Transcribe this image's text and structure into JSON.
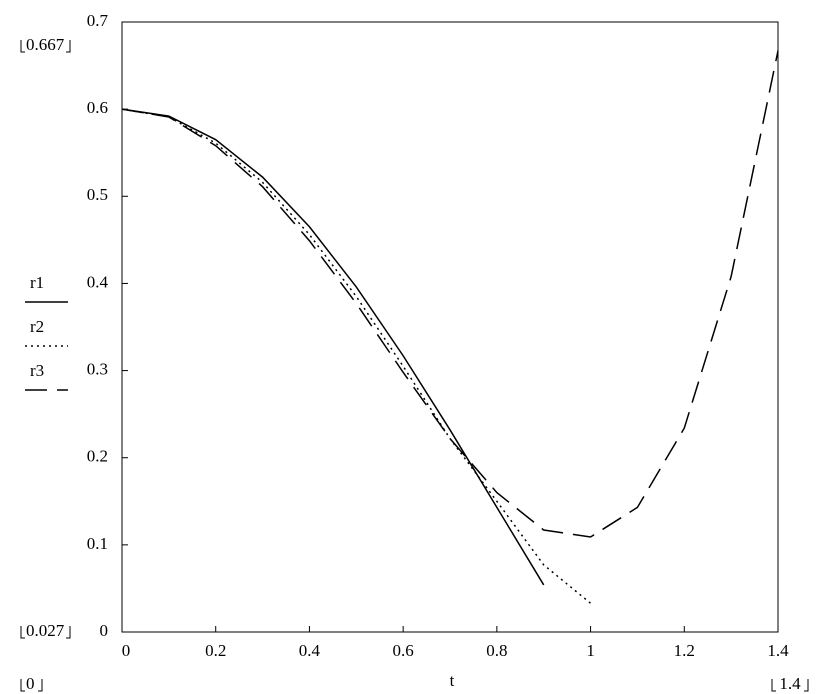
{
  "chart_data": {
    "type": "line",
    "x_label": "t",
    "x": [
      0,
      0.1,
      0.2,
      0.3,
      0.4,
      0.5,
      0.6,
      0.7,
      0.8,
      0.9,
      1,
      1.1,
      1.2,
      1.3,
      1.4
    ],
    "series": [
      {
        "name": "r1",
        "color": "#000000",
        "dash": "solid",
        "values": [
          0.6,
          0.592,
          0.565,
          0.522,
          0.465,
          0.396,
          0.317,
          0.232,
          0.143,
          0.054,
          null,
          null,
          null,
          null,
          null
        ]
      },
      {
        "name": "r2",
        "color": "#000000",
        "dash": "dotted",
        "values": [
          0.6,
          0.591,
          0.561,
          0.516,
          0.456,
          0.385,
          0.305,
          0.222,
          0.15,
          0.077,
          0.033,
          null,
          null,
          null,
          null
        ]
      },
      {
        "name": "r3",
        "color": "#000000",
        "dash": "dashed",
        "values": [
          0.6,
          0.591,
          0.558,
          0.511,
          0.449,
          0.377,
          0.298,
          0.222,
          0.16,
          0.117,
          0.109,
          0.143,
          0.234,
          0.408,
          0.667
        ]
      }
    ],
    "xlim": [
      0,
      1.4
    ],
    "xticks": [
      0,
      0.2,
      0.4,
      0.6,
      0.8,
      1,
      1.2,
      1.4
    ],
    "ylim": [
      0,
      0.7
    ],
    "yticks": [
      0,
      0.1,
      0.2,
      0.3,
      0.4,
      0.5,
      0.6,
      0.7
    ],
    "limit_labels": {
      "y_max": "0.667",
      "y_min": "0.027",
      "x_min": "0",
      "x_max": "1.4"
    }
  }
}
